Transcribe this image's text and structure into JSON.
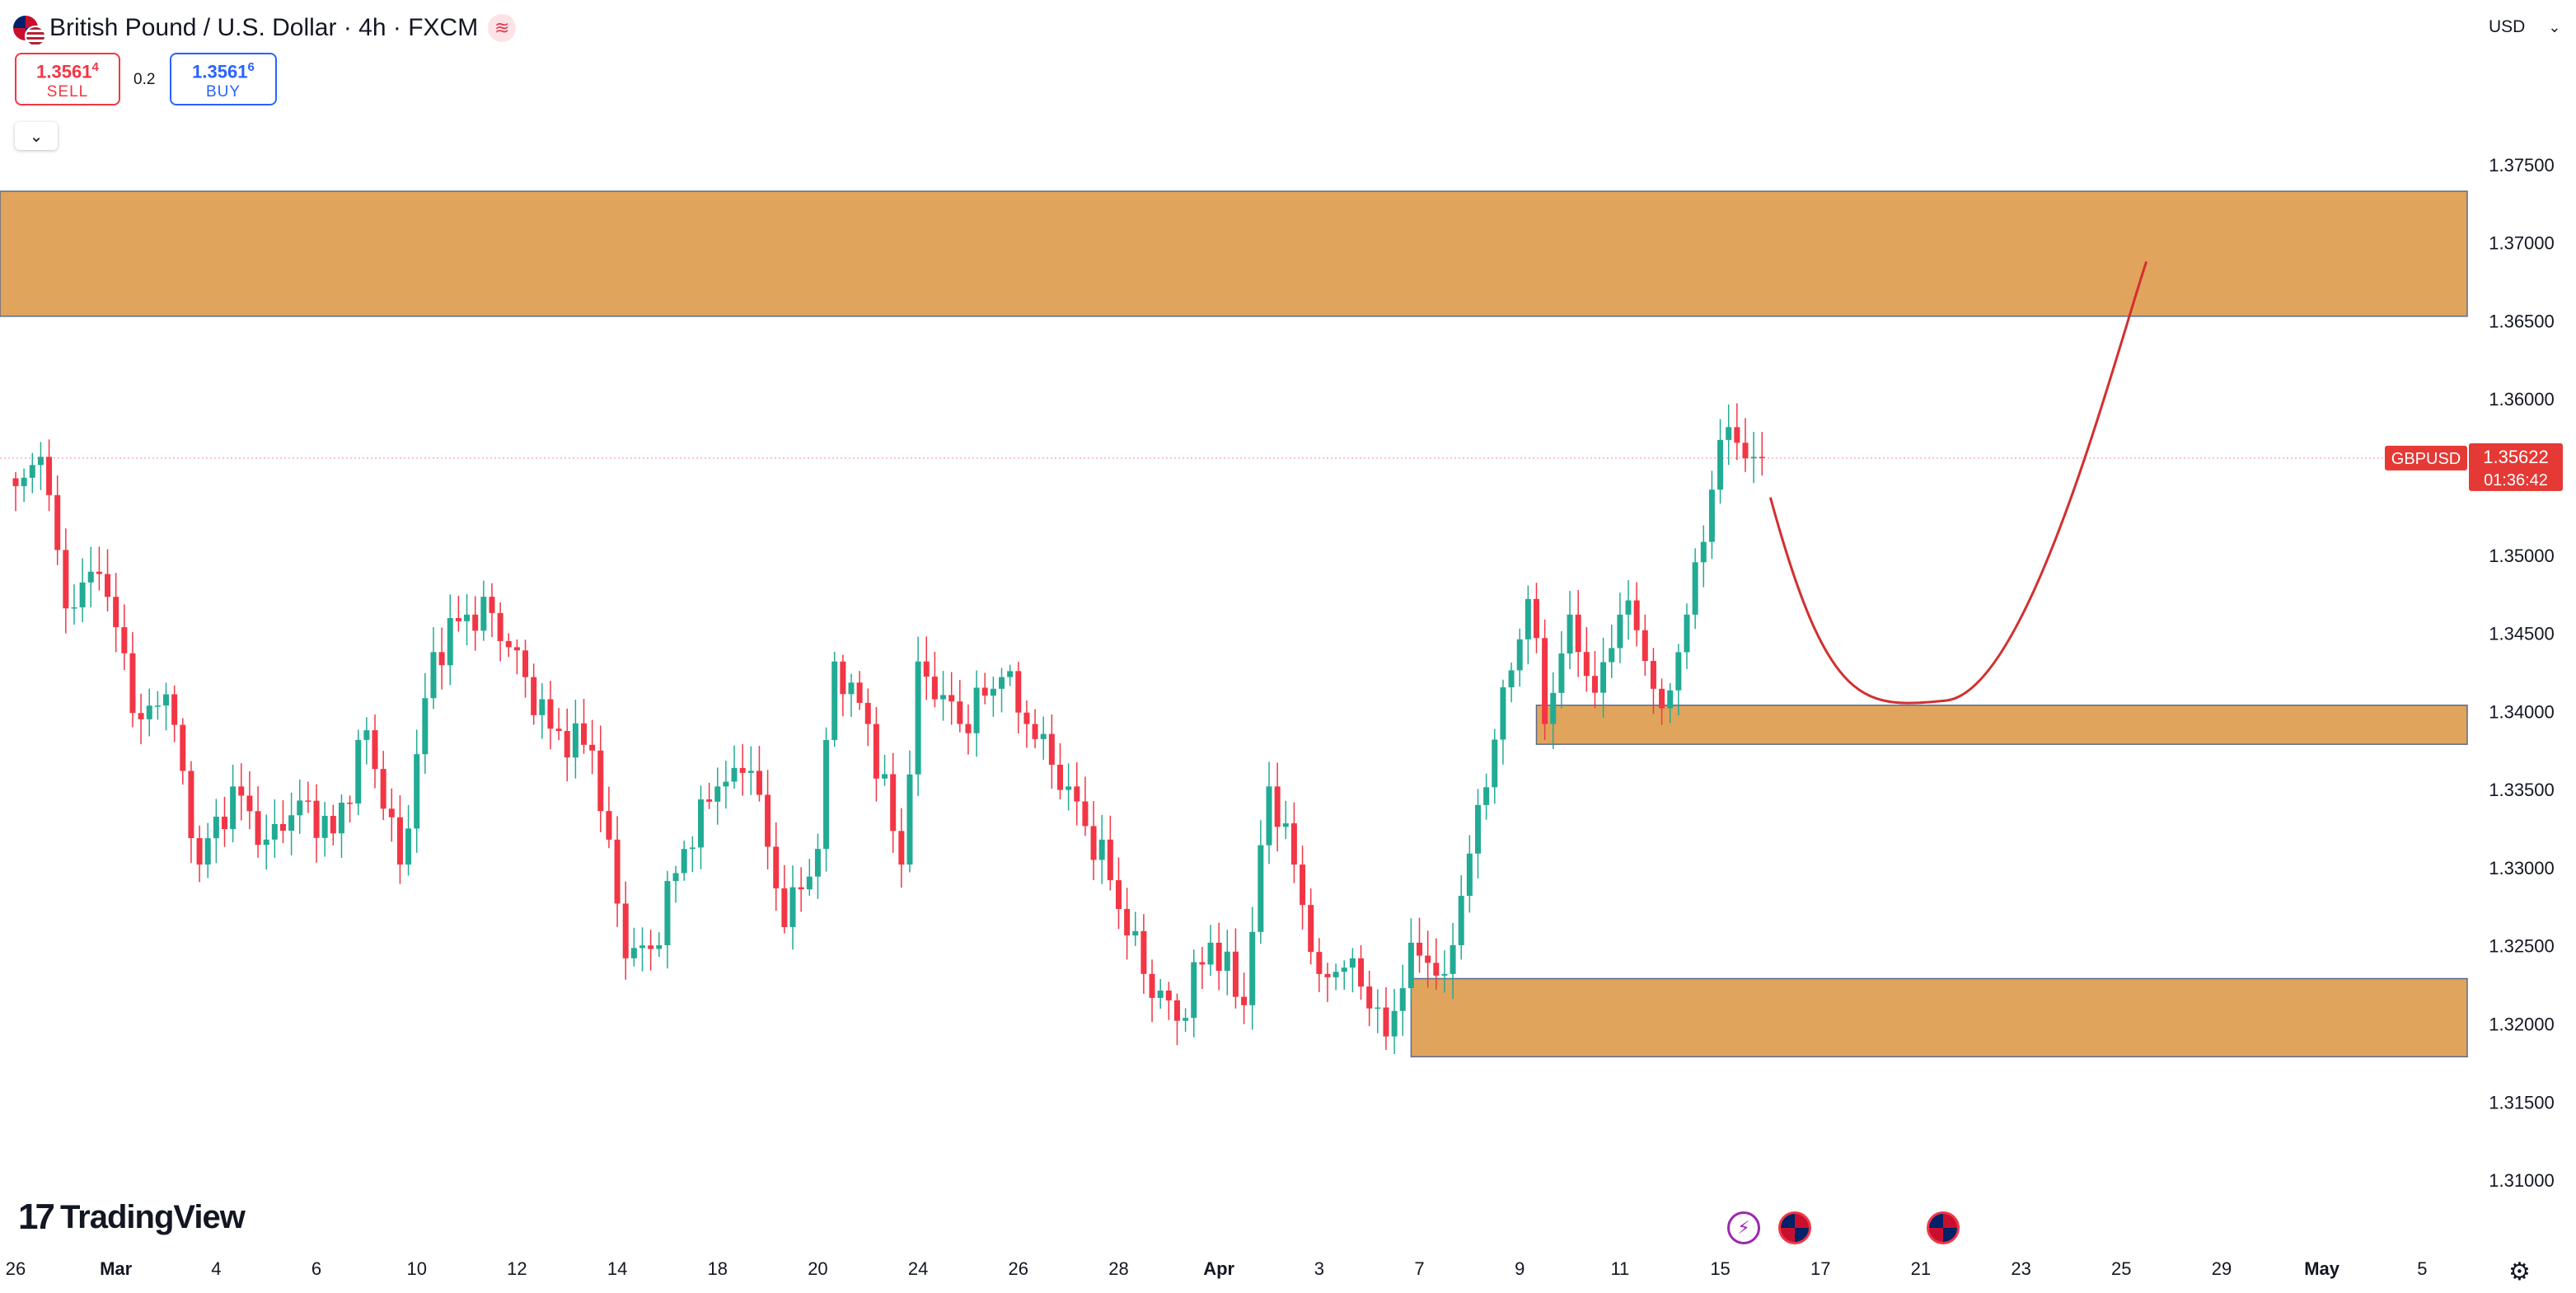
{
  "header": {
    "symbol_name": "British Pound / U.S. Dollar",
    "interval": "4h",
    "exchange": "FXCM",
    "sell_price_main": "1.3561",
    "sell_price_sup": "4",
    "sell_label": "SELL",
    "spread": "0.2",
    "buy_price_main": "1.3561",
    "buy_price_sup": "6",
    "buy_label": "BUY",
    "currency": "USD",
    "collapse_icon": "chevron-down-icon"
  },
  "branding": {
    "logo_text": "TradingView",
    "logo_mark": "17"
  },
  "events": [
    {
      "icon": "bolt-icon"
    },
    {
      "icon": "uk-flag-icon"
    },
    {
      "icon": "uk-flag-icon"
    }
  ],
  "colors": {
    "bull": "#22ab94",
    "bear": "#f23645",
    "zone": "#e1a45c",
    "zone_border": "#5b6b8c",
    "curve": "#d32f2f",
    "price_tag": "#e53935"
  },
  "chart_data": {
    "type": "candlestick",
    "symbol": "GBPUSD",
    "timeframe": "4h",
    "ylim": [
      1.3085,
      1.3785
    ],
    "y_ticks": [
      "1.37500",
      "1.37000",
      "1.36500",
      "1.36000",
      "1.35500",
      "1.35000",
      "1.34500",
      "1.34000",
      "1.33500",
      "1.33000",
      "1.32500",
      "1.32000",
      "1.31500",
      "1.31000"
    ],
    "y_tick_values": [
      1.375,
      1.37,
      1.365,
      1.36,
      1.355,
      1.35,
      1.345,
      1.34,
      1.335,
      1.33,
      1.325,
      1.32,
      1.315,
      1.31
    ],
    "x_ticks": [
      "26",
      "Mar",
      "4",
      "6",
      "10",
      "12",
      "14",
      "18",
      "20",
      "24",
      "26",
      "28",
      "Apr",
      "3",
      "7",
      "9",
      "11",
      "15",
      "17",
      "21",
      "23",
      "25",
      "29",
      "May",
      "5"
    ],
    "x_tick_index": [
      0,
      12,
      24,
      36,
      48,
      60,
      72,
      84,
      96,
      108,
      120,
      132,
      144,
      156,
      168,
      180,
      192,
      204,
      216,
      228,
      240,
      252,
      264,
      276,
      288
    ],
    "bold_ticks": [
      "Mar",
      "Apr",
      "May"
    ],
    "last_price": {
      "label": "GBPUSD",
      "value": "1.35622",
      "countdown": "01:36:42"
    },
    "zones": [
      {
        "name": "supply-zone",
        "from": 1.3653,
        "to": 1.3733,
        "start_index": -2
      },
      {
        "name": "demand-zone-upper",
        "from": 1.3379,
        "to": 1.3404,
        "start_index": 182
      },
      {
        "name": "demand-zone-lower",
        "from": 1.3179,
        "to": 1.3229,
        "start_index": 167
      }
    ],
    "projection": {
      "points": [
        [
          210,
          1.3537
        ],
        [
          231,
          1.3407
        ],
        [
          255,
          1.3688
        ]
      ]
    },
    "keypoints": [
      [
        -1,
        1.353
      ],
      [
        3,
        1.3563
      ],
      [
        6,
        1.3466
      ],
      [
        10,
        1.3488
      ],
      [
        15,
        1.3395
      ],
      [
        18,
        1.3411
      ],
      [
        22,
        1.3302
      ],
      [
        26,
        1.3352
      ],
      [
        30,
        1.3318
      ],
      [
        34,
        1.3343
      ],
      [
        38,
        1.3322
      ],
      [
        42,
        1.3388
      ],
      [
        46,
        1.3302
      ],
      [
        50,
        1.3438
      ],
      [
        54,
        1.3462
      ],
      [
        57,
        1.3463
      ],
      [
        61,
        1.3422
      ],
      [
        64,
        1.3389
      ],
      [
        69,
        1.3375
      ],
      [
        73,
        1.3242
      ],
      [
        76,
        1.3248
      ],
      [
        80,
        1.3312
      ],
      [
        84,
        1.3352
      ],
      [
        88,
        1.3362
      ],
      [
        92,
        1.3262
      ],
      [
        96,
        1.3312
      ],
      [
        98,
        1.3432
      ],
      [
        102,
        1.3392
      ],
      [
        106,
        1.3302
      ],
      [
        108,
        1.3432
      ],
      [
        113,
        1.3392
      ],
      [
        118,
        1.3422
      ],
      [
        121,
        1.3392
      ],
      [
        126,
        1.3352
      ],
      [
        131,
        1.3292
      ],
      [
        135,
        1.3232
      ],
      [
        139,
        1.3202
      ],
      [
        143,
        1.3252
      ],
      [
        147,
        1.3212
      ],
      [
        150,
        1.3352
      ],
      [
        153,
        1.3302
      ],
      [
        156,
        1.3232
      ],
      [
        160,
        1.3242
      ],
      [
        164,
        1.3192
      ],
      [
        167,
        1.3252
      ],
      [
        171,
        1.3232
      ],
      [
        173,
        1.3282
      ],
      [
        177,
        1.3382
      ],
      [
        181,
        1.3472
      ],
      [
        183,
        1.3392
      ],
      [
        186,
        1.3462
      ],
      [
        189,
        1.3412
      ],
      [
        192,
        1.3462
      ],
      [
        194,
        1.3452
      ],
      [
        197,
        1.3402
      ],
      [
        200,
        1.3462
      ],
      [
        203,
        1.3542
      ],
      [
        205,
        1.3582
      ],
      [
        206,
        1.3572
      ],
      [
        208,
        1.3563
      ],
      [
        209,
        1.35622
      ]
    ]
  }
}
